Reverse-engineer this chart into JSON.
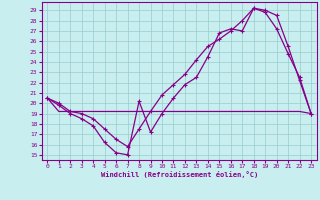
{
  "xlabel": "Windchill (Refroidissement éolien,°C)",
  "x_ticks": [
    0,
    1,
    2,
    3,
    4,
    5,
    6,
    7,
    8,
    9,
    10,
    11,
    12,
    13,
    14,
    15,
    16,
    17,
    18,
    19,
    20,
    21,
    22,
    23
  ],
  "y_ticks": [
    15,
    16,
    17,
    18,
    19,
    20,
    21,
    22,
    23,
    24,
    25,
    26,
    27,
    28,
    29
  ],
  "xlim": [
    -0.5,
    23.5
  ],
  "ylim": [
    14.5,
    29.8
  ],
  "bg_color": "#c8eef0",
  "line_color": "#880088",
  "grid_color": "#99cccc",
  "line1_x": [
    0,
    1,
    2,
    3,
    4,
    5,
    6,
    7,
    8,
    9,
    10,
    11,
    12,
    13,
    14,
    15,
    16,
    17,
    18,
    19,
    20,
    21,
    22,
    23
  ],
  "line1_y": [
    20.5,
    19.8,
    19.0,
    18.5,
    17.8,
    16.2,
    15.2,
    15.0,
    20.2,
    17.2,
    19.0,
    20.5,
    21.8,
    22.5,
    24.5,
    26.8,
    27.2,
    27.0,
    29.2,
    29.0,
    28.5,
    25.5,
    22.2,
    19.0
  ],
  "line2_x": [
    0,
    1,
    2,
    3,
    4,
    5,
    6,
    7,
    8,
    9,
    10,
    11,
    12,
    13,
    14,
    15,
    16,
    17,
    18,
    19,
    20,
    21,
    22,
    23
  ],
  "line2_y": [
    20.5,
    19.2,
    19.2,
    19.2,
    19.2,
    19.2,
    19.2,
    19.2,
    19.2,
    19.2,
    19.2,
    19.2,
    19.2,
    19.2,
    19.2,
    19.2,
    19.2,
    19.2,
    19.2,
    19.2,
    19.2,
    19.2,
    19.2,
    19.0
  ],
  "line3_x": [
    0,
    1,
    2,
    3,
    4,
    5,
    6,
    7,
    8,
    9,
    10,
    11,
    12,
    13,
    14,
    15,
    16,
    17,
    18,
    19,
    20,
    21,
    22,
    23
  ],
  "line3_y": [
    20.5,
    20.0,
    19.2,
    19.0,
    18.5,
    17.5,
    16.5,
    15.8,
    17.5,
    19.2,
    20.8,
    21.8,
    22.8,
    24.2,
    25.5,
    26.2,
    27.0,
    28.0,
    29.2,
    28.8,
    27.2,
    24.8,
    22.5,
    19.0
  ]
}
